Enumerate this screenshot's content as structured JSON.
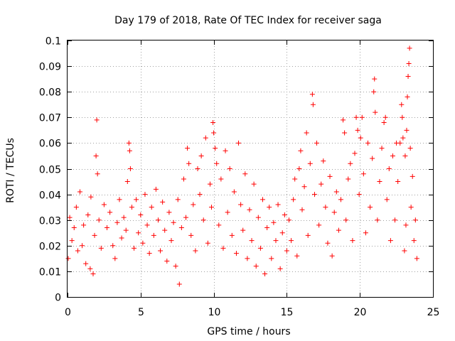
{
  "chart_data": {
    "type": "scatter",
    "title": "Day 179 of 2018, Rate Of TEC Index for receiver saga",
    "xlabel": "GPS time / hours",
    "ylabel": "ROTI / TECUs",
    "xlim": [
      0,
      25
    ],
    "ylim": [
      0,
      0.1
    ],
    "xticks": [
      0,
      5,
      10,
      15,
      20,
      25
    ],
    "xtick_labels": [
      "0",
      "5",
      "10",
      "15",
      "20",
      "25"
    ],
    "yticks": [
      0,
      0.01,
      0.02,
      0.03,
      0.04,
      0.05,
      0.06,
      0.07,
      0.08,
      0.09,
      0.1
    ],
    "ytick_labels": [
      "0",
      "0.01",
      "0.02",
      "0.03",
      "0.04",
      "0.05",
      "0.06",
      "0.07",
      "0.08",
      "0.09",
      "0.1"
    ],
    "grid": true,
    "marker": "+",
    "color": "#ff0000",
    "series": [
      {
        "name": "ROTI",
        "points": [
          [
            0.05,
            0.015
          ],
          [
            0.15,
            0.031
          ],
          [
            0.3,
            0.022
          ],
          [
            0.45,
            0.027
          ],
          [
            0.6,
            0.035
          ],
          [
            0.7,
            0.018
          ],
          [
            0.85,
            0.041
          ],
          [
            1.0,
            0.02
          ],
          [
            1.1,
            0.028
          ],
          [
            1.25,
            0.013
          ],
          [
            1.4,
            0.032
          ],
          [
            1.55,
            0.011
          ],
          [
            1.6,
            0.039
          ],
          [
            1.75,
            0.009
          ],
          [
            1.85,
            0.024
          ],
          [
            1.95,
            0.055
          ],
          [
            2.0,
            0.069
          ],
          [
            2.05,
            0.048
          ],
          [
            2.15,
            0.03
          ],
          [
            2.3,
            0.019
          ],
          [
            2.5,
            0.036
          ],
          [
            2.7,
            0.027
          ],
          [
            2.9,
            0.033
          ],
          [
            3.1,
            0.02
          ],
          [
            3.25,
            0.015
          ],
          [
            3.4,
            0.029
          ],
          [
            3.55,
            0.038
          ],
          [
            3.7,
            0.023
          ],
          [
            3.85,
            0.031
          ],
          [
            4.0,
            0.026
          ],
          [
            4.1,
            0.045
          ],
          [
            4.2,
            0.06
          ],
          [
            4.25,
            0.057
          ],
          [
            4.3,
            0.05
          ],
          [
            4.4,
            0.035
          ],
          [
            4.55,
            0.019
          ],
          [
            4.7,
            0.038
          ],
          [
            4.85,
            0.025
          ],
          [
            5.0,
            0.032
          ],
          [
            5.15,
            0.021
          ],
          [
            5.3,
            0.04
          ],
          [
            5.45,
            0.028
          ],
          [
            5.6,
            0.017
          ],
          [
            5.75,
            0.035
          ],
          [
            5.9,
            0.024
          ],
          [
            6.05,
            0.042
          ],
          [
            6.2,
            0.03
          ],
          [
            6.35,
            0.018
          ],
          [
            6.5,
            0.037
          ],
          [
            6.65,
            0.026
          ],
          [
            6.8,
            0.014
          ],
          [
            6.95,
            0.033
          ],
          [
            7.1,
            0.022
          ],
          [
            7.25,
            0.029
          ],
          [
            7.4,
            0.012
          ],
          [
            7.55,
            0.038
          ],
          [
            7.65,
            0.005
          ],
          [
            7.8,
            0.027
          ],
          [
            7.95,
            0.046
          ],
          [
            8.1,
            0.031
          ],
          [
            8.2,
            0.058
          ],
          [
            8.3,
            0.052
          ],
          [
            8.45,
            0.024
          ],
          [
            8.6,
            0.036
          ],
          [
            8.75,
            0.018
          ],
          [
            8.9,
            0.05
          ],
          [
            9.05,
            0.04
          ],
          [
            9.15,
            0.055
          ],
          [
            9.3,
            0.03
          ],
          [
            9.45,
            0.062
          ],
          [
            9.6,
            0.021
          ],
          [
            9.75,
            0.044
          ],
          [
            9.85,
            0.035
          ],
          [
            9.95,
            0.068
          ],
          [
            10.0,
            0.064
          ],
          [
            10.1,
            0.058
          ],
          [
            10.2,
            0.052
          ],
          [
            10.35,
            0.028
          ],
          [
            10.5,
            0.046
          ],
          [
            10.65,
            0.019
          ],
          [
            10.8,
            0.057
          ],
          [
            10.95,
            0.033
          ],
          [
            11.1,
            0.05
          ],
          [
            11.25,
            0.024
          ],
          [
            11.4,
            0.041
          ],
          [
            11.55,
            0.017
          ],
          [
            11.7,
            0.06
          ],
          [
            11.85,
            0.036
          ],
          [
            12.0,
            0.026
          ],
          [
            12.15,
            0.048
          ],
          [
            12.3,
            0.015
          ],
          [
            12.45,
            0.034
          ],
          [
            12.6,
            0.022
          ],
          [
            12.75,
            0.044
          ],
          [
            12.9,
            0.012
          ],
          [
            13.05,
            0.031
          ],
          [
            13.2,
            0.019
          ],
          [
            13.35,
            0.038
          ],
          [
            13.5,
            0.009
          ],
          [
            13.65,
            0.027
          ],
          [
            13.8,
            0.035
          ],
          [
            13.95,
            0.015
          ],
          [
            14.1,
            0.029
          ],
          [
            14.25,
            0.022
          ],
          [
            14.4,
            0.036
          ],
          [
            14.55,
            0.011
          ],
          [
            14.7,
            0.025
          ],
          [
            14.85,
            0.032
          ],
          [
            15.0,
            0.018
          ],
          [
            15.15,
            0.03
          ],
          [
            15.3,
            0.022
          ],
          [
            15.45,
            0.038
          ],
          [
            15.55,
            0.046
          ],
          [
            15.7,
            0.016
          ],
          [
            15.85,
            0.05
          ],
          [
            15.95,
            0.057
          ],
          [
            16.05,
            0.034
          ],
          [
            16.2,
            0.043
          ],
          [
            16.35,
            0.064
          ],
          [
            16.45,
            0.024
          ],
          [
            16.6,
            0.052
          ],
          [
            16.75,
            0.079
          ],
          [
            16.8,
            0.075
          ],
          [
            16.9,
            0.04
          ],
          [
            17.05,
            0.06
          ],
          [
            17.2,
            0.028
          ],
          [
            17.35,
            0.044
          ],
          [
            17.5,
            0.053
          ],
          [
            17.65,
            0.035
          ],
          [
            17.8,
            0.021
          ],
          [
            17.95,
            0.047
          ],
          [
            18.1,
            0.016
          ],
          [
            18.25,
            0.033
          ],
          [
            18.4,
            0.041
          ],
          [
            18.55,
            0.026
          ],
          [
            18.7,
            0.038
          ],
          [
            18.85,
            0.069
          ],
          [
            18.95,
            0.064
          ],
          [
            19.05,
            0.03
          ],
          [
            19.2,
            0.046
          ],
          [
            19.35,
            0.052
          ],
          [
            19.5,
            0.022
          ],
          [
            19.65,
            0.056
          ],
          [
            19.75,
            0.07
          ],
          [
            19.85,
            0.065
          ],
          [
            19.95,
            0.04
          ],
          [
            20.05,
            0.062
          ],
          [
            20.15,
            0.07
          ],
          [
            20.25,
            0.048
          ],
          [
            20.4,
            0.025
          ],
          [
            20.55,
            0.06
          ],
          [
            20.7,
            0.035
          ],
          [
            20.85,
            0.054
          ],
          [
            20.95,
            0.08
          ],
          [
            21.0,
            0.085
          ],
          [
            21.05,
            0.072
          ],
          [
            21.2,
            0.03
          ],
          [
            21.35,
            0.045
          ],
          [
            21.5,
            0.058
          ],
          [
            21.65,
            0.068
          ],
          [
            21.75,
            0.07
          ],
          [
            21.85,
            0.038
          ],
          [
            22.0,
            0.05
          ],
          [
            22.1,
            0.022
          ],
          [
            22.25,
            0.055
          ],
          [
            22.4,
            0.03
          ],
          [
            22.5,
            0.06
          ],
          [
            22.6,
            0.045
          ],
          [
            22.75,
            0.06
          ],
          [
            22.85,
            0.075
          ],
          [
            22.9,
            0.07
          ],
          [
            22.95,
            0.062
          ],
          [
            23.05,
            0.018
          ],
          [
            23.1,
            0.055
          ],
          [
            23.15,
            0.028
          ],
          [
            23.2,
            0.065
          ],
          [
            23.25,
            0.078
          ],
          [
            23.3,
            0.086
          ],
          [
            23.35,
            0.091
          ],
          [
            23.4,
            0.097
          ],
          [
            23.45,
            0.058
          ],
          [
            23.5,
            0.035
          ],
          [
            23.6,
            0.047
          ],
          [
            23.7,
            0.022
          ],
          [
            23.8,
            0.03
          ],
          [
            23.9,
            0.015
          ]
        ]
      }
    ]
  }
}
